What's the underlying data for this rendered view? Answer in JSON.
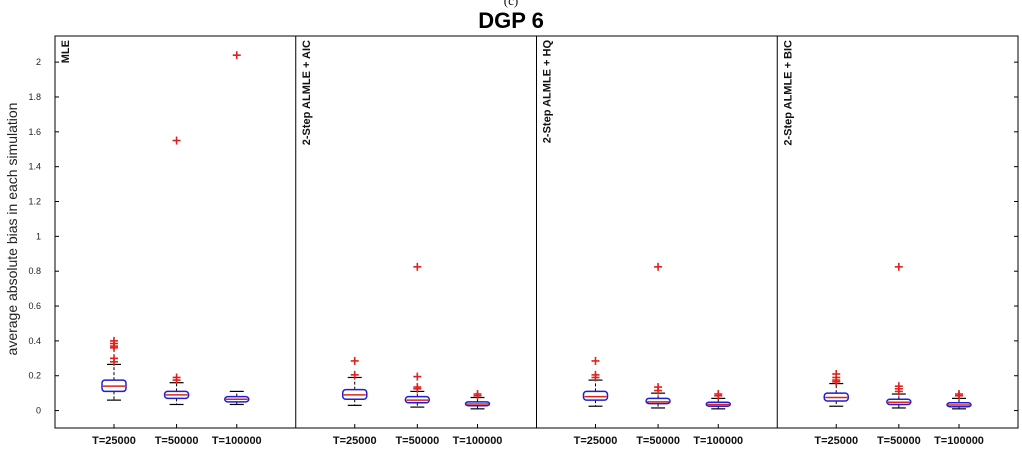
{
  "figure": {
    "subtitle": "(c)",
    "title": "DGP 6",
    "ylabel": "average absolute bias in each simulation",
    "yticks": [
      0,
      0.2,
      0.4,
      0.6,
      0.8,
      1,
      1.2,
      1.4,
      1.6,
      1.8,
      2
    ]
  },
  "colors": {
    "box": "#1f1fd6",
    "median": "#e0201c",
    "whisker": "#000000",
    "outlier": "#e0201c",
    "axis": "#000000"
  },
  "chart_data": {
    "type": "box",
    "title": "DGP 6",
    "ylabel": "average absolute bias in each simulation",
    "ylim": [
      -0.1,
      2.15
    ],
    "grid": false,
    "categories": [
      "T=25000",
      "T=50000",
      "T=100000"
    ],
    "panels": [
      {
        "label": "MLE",
        "boxes": [
          {
            "category": "T=25000",
            "whisker_low": 0.06,
            "q1": 0.11,
            "median": 0.14,
            "q3": 0.175,
            "whisker_high": 0.265,
            "outliers": [
              0.28,
              0.3,
              0.36,
              0.37,
              0.385,
              0.4
            ]
          },
          {
            "category": "T=50000",
            "whisker_low": 0.035,
            "q1": 0.07,
            "median": 0.09,
            "q3": 0.11,
            "whisker_high": 0.16,
            "outliers": [
              0.175,
              0.19,
              1.55
            ]
          },
          {
            "category": "T=100000",
            "whisker_low": 0.035,
            "q1": 0.05,
            "median": 0.065,
            "q3": 0.08,
            "whisker_high": 0.11,
            "outliers": [
              2.04
            ]
          }
        ]
      },
      {
        "label": "2-Step ALMLE + AIC",
        "boxes": [
          {
            "category": "T=25000",
            "whisker_low": 0.03,
            "q1": 0.065,
            "median": 0.09,
            "q3": 0.12,
            "whisker_high": 0.19,
            "outliers": [
              0.205,
              0.285
            ]
          },
          {
            "category": "T=50000",
            "whisker_low": 0.02,
            "q1": 0.045,
            "median": 0.06,
            "q3": 0.08,
            "whisker_high": 0.11,
            "outliers": [
              0.125,
              0.135,
              0.195,
              0.825
            ]
          },
          {
            "category": "T=100000",
            "whisker_low": 0.01,
            "q1": 0.028,
            "median": 0.038,
            "q3": 0.05,
            "whisker_high": 0.075,
            "outliers": [
              0.085,
              0.095
            ]
          }
        ]
      },
      {
        "label": "2-Step ALMLE + HQ",
        "boxes": [
          {
            "category": "T=25000",
            "whisker_low": 0.025,
            "q1": 0.06,
            "median": 0.08,
            "q3": 0.11,
            "whisker_high": 0.175,
            "outliers": [
              0.19,
              0.205,
              0.285
            ]
          },
          {
            "category": "T=50000",
            "whisker_low": 0.015,
            "q1": 0.04,
            "median": 0.05,
            "q3": 0.07,
            "whisker_high": 0.1,
            "outliers": [
              0.115,
              0.135,
              0.825
            ]
          },
          {
            "category": "T=100000",
            "whisker_low": 0.01,
            "q1": 0.025,
            "median": 0.035,
            "q3": 0.048,
            "whisker_high": 0.07,
            "outliers": [
              0.085,
              0.095
            ]
          }
        ]
      },
      {
        "label": "2-Step ALMLE + BIC",
        "boxes": [
          {
            "category": "T=25000",
            "whisker_low": 0.025,
            "q1": 0.055,
            "median": 0.075,
            "q3": 0.1,
            "whisker_high": 0.155,
            "outliers": [
              0.165,
              0.175,
              0.19,
              0.21
            ]
          },
          {
            "category": "T=50000",
            "whisker_low": 0.015,
            "q1": 0.035,
            "median": 0.048,
            "q3": 0.065,
            "whisker_high": 0.095,
            "outliers": [
              0.11,
              0.125,
              0.14,
              0.825
            ]
          },
          {
            "category": "T=100000",
            "whisker_low": 0.01,
            "q1": 0.022,
            "median": 0.032,
            "q3": 0.045,
            "whisker_high": 0.07,
            "outliers": [
              0.085,
              0.095
            ]
          }
        ]
      }
    ]
  }
}
